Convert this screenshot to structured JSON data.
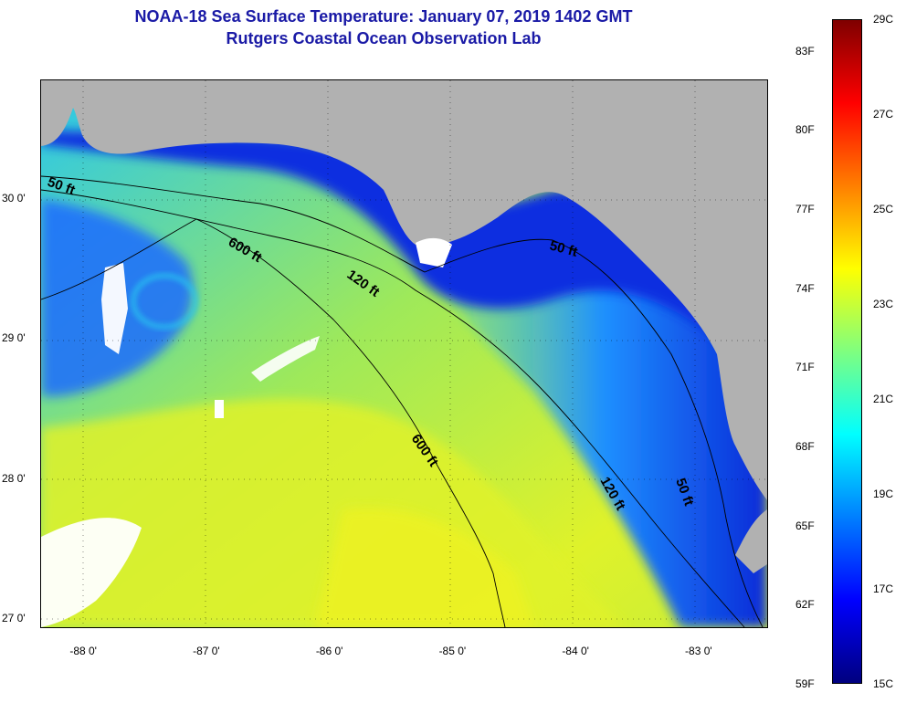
{
  "header": {
    "title": "NOAA-18 Sea Surface Temperature:  January 07, 2019 1402 GMT",
    "subtitle": "Rutgers Coastal Ocean Observation Lab"
  },
  "map": {
    "lon_range": [
      -88.35,
      -82.45
    ],
    "lat_range": [
      26.95,
      30.85
    ],
    "lat_ticks": [
      {
        "value": 30,
        "label": "30 0'"
      },
      {
        "value": 29,
        "label": "29 0'"
      },
      {
        "value": 28,
        "label": "28 0'"
      },
      {
        "value": 27,
        "label": "27 0'"
      }
    ],
    "lon_ticks": [
      {
        "value": -88,
        "label": "-88 0'"
      },
      {
        "value": -87,
        "label": "-87 0'"
      },
      {
        "value": -86,
        "label": "-86 0'"
      },
      {
        "value": -85,
        "label": "-85 0'"
      },
      {
        "value": -84,
        "label": "-84 0'"
      },
      {
        "value": -83,
        "label": "-83 0'"
      }
    ],
    "depth_labels": [
      "50 ft",
      "600 ft",
      "120 ft",
      "50 ft",
      "600 ft",
      "120 ft",
      "50 ft"
    ],
    "colors": {
      "land": "#b1b1b1",
      "cloud": "#ffffff",
      "deep_blue": "#0a1fd6",
      "mid_blue": "#1f5cff",
      "cyan": "#27c6ef",
      "green_yellow": "#b6ec3a",
      "yellow": "#e4f226"
    }
  },
  "colorbar": {
    "fahrenheit_labels": [
      "83F",
      "80F",
      "77F",
      "74F",
      "71F",
      "68F",
      "65F",
      "62F",
      "59F"
    ],
    "celsius_labels": [
      "29C",
      "27C",
      "25C",
      "23C",
      "21C",
      "19C",
      "17C",
      "15C"
    ],
    "range_c": [
      15,
      29
    ],
    "range_f": [
      59,
      84.2
    ],
    "colors": [
      "#00007f",
      "#0000ff",
      "#007fff",
      "#00ffff",
      "#7fff7f",
      "#ffff00",
      "#ff7f00",
      "#ff0000",
      "#7f0000"
    ]
  }
}
